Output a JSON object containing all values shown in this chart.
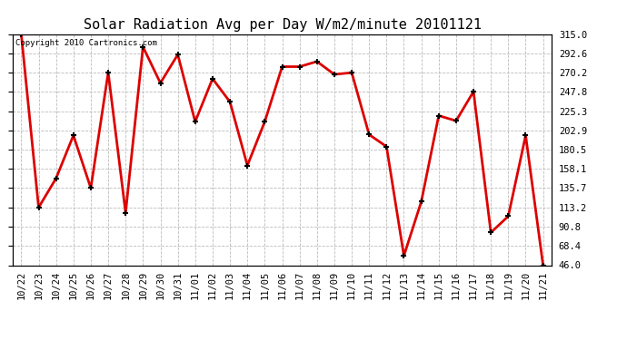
{
  "title": "Solar Radiation Avg per Day W/m2/minute 20101121",
  "copyright_text": "Copyright 2010 Cartronics.com",
  "labels": [
    "10/22",
    "10/23",
    "10/24",
    "10/25",
    "10/26",
    "10/27",
    "10/28",
    "10/29",
    "10/30",
    "10/31",
    "11/01",
    "11/02",
    "11/03",
    "11/04",
    "11/05",
    "11/06",
    "11/07",
    "11/08",
    "11/09",
    "11/10",
    "11/11",
    "11/12",
    "11/13",
    "11/14",
    "11/15",
    "11/16",
    "11/17",
    "11/18",
    "11/19",
    "11/20",
    "11/21"
  ],
  "values": [
    315.0,
    113.2,
    147.0,
    197.0,
    135.7,
    270.2,
    107.0,
    300.0,
    258.0,
    291.0,
    213.0,
    263.0,
    236.0,
    162.0,
    213.0,
    277.0,
    277.0,
    283.0,
    268.0,
    270.0,
    198.0,
    184.0,
    57.0,
    120.0,
    220.0,
    214.0,
    248.0,
    84.0,
    103.0,
    197.0,
    46.0
  ],
  "line_color": "#dd0000",
  "marker_color": "#000000",
  "bg_color": "#ffffff",
  "grid_color": "#bbbbbb",
  "ylim_min": 46.0,
  "ylim_max": 315.0,
  "yticks": [
    46.0,
    68.4,
    90.8,
    113.2,
    135.7,
    158.1,
    180.5,
    202.9,
    225.3,
    247.8,
    270.2,
    292.6,
    315.0
  ],
  "title_fontsize": 11,
  "tick_fontsize": 7.5,
  "copyright_fontsize": 6.5,
  "line_width": 2.0,
  "marker_size": 5
}
